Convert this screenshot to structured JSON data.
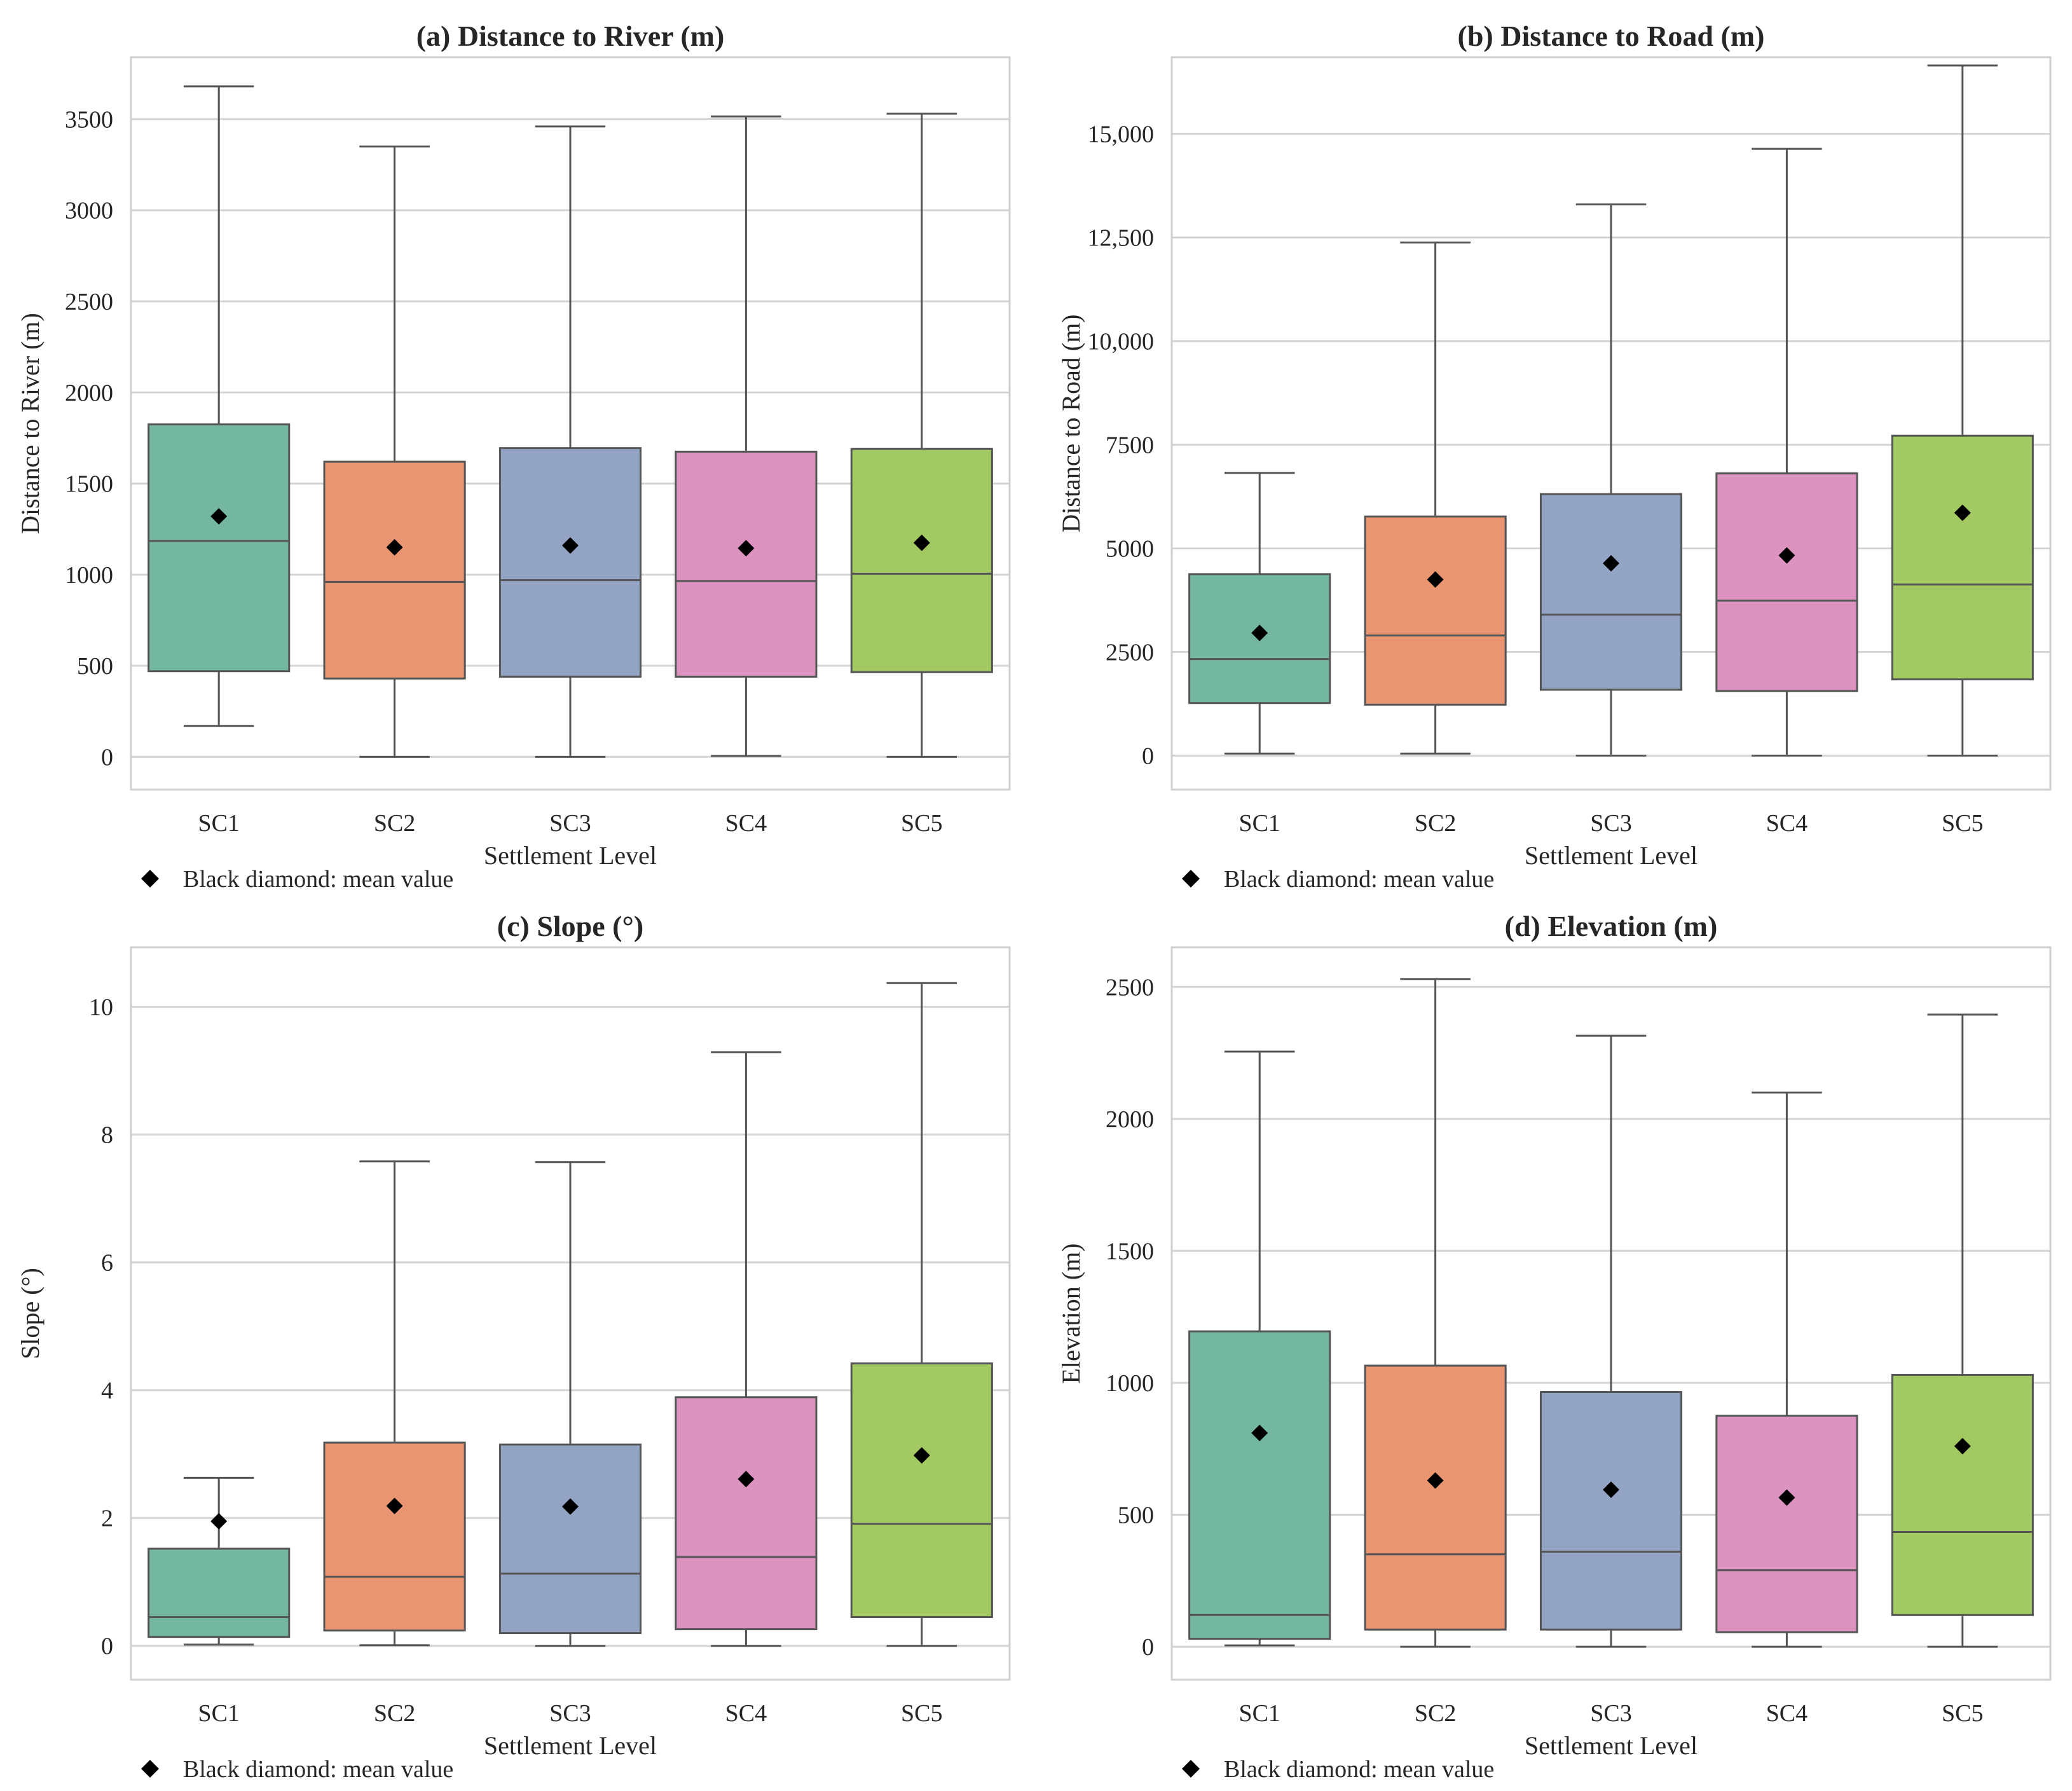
{
  "colors": {
    "SC1": "#74b7a1",
    "SC2": "#e99572",
    "SC3": "#92a3c4",
    "SC4": "#dc93bf",
    "SC5": "#a2c962",
    "edge": "#555555",
    "grid": "#d4d4d4",
    "frame": "#cfcfcf"
  },
  "chart_data": [
    {
      "type": "box",
      "title": "(a) Distance to River (m)",
      "xlabel": "Settlement Level",
      "ylabel": "Distance to River (m)",
      "ylim": [
        -180,
        3840
      ],
      "yticks": [
        0,
        500,
        1000,
        1500,
        2000,
        2500,
        3000,
        3500
      ],
      "ytick_labels": [
        "0",
        "500",
        "1000",
        "1500",
        "2000",
        "2500",
        "3000",
        "3500"
      ],
      "categories": [
        "SC1",
        "SC2",
        "SC3",
        "SC4",
        "SC5"
      ],
      "boxes": [
        {
          "min": 170,
          "q1": 470,
          "median": 1185,
          "q3": 1825,
          "max": 3680,
          "mean": 1320
        },
        {
          "min": 0,
          "q1": 430,
          "median": 960,
          "q3": 1620,
          "max": 3350,
          "mean": 1150
        },
        {
          "min": 0,
          "q1": 440,
          "median": 970,
          "q3": 1695,
          "max": 3460,
          "mean": 1160
        },
        {
          "min": 5,
          "q1": 440,
          "median": 965,
          "q3": 1675,
          "max": 3515,
          "mean": 1145
        },
        {
          "min": 0,
          "q1": 465,
          "median": 1005,
          "q3": 1690,
          "max": 3530,
          "mean": 1175
        }
      ],
      "legend": "Black diamond: mean value"
    },
    {
      "type": "box",
      "title": "(b) Distance to Road (m)",
      "xlabel": "Settlement Level",
      "ylabel": "Distance to Road (m)",
      "ylim": [
        -820,
        16850
      ],
      "yticks": [
        0,
        2500,
        5000,
        7500,
        10000,
        12500,
        15000
      ],
      "ytick_labels": [
        "0",
        "2500",
        "5000",
        "7500",
        "10,000",
        "12,500",
        "15,000"
      ],
      "categories": [
        "SC1",
        "SC2",
        "SC3",
        "SC4",
        "SC5"
      ],
      "boxes": [
        {
          "min": 50,
          "q1": 1270,
          "median": 2330,
          "q3": 4380,
          "max": 6820,
          "mean": 2960
        },
        {
          "min": 50,
          "q1": 1230,
          "median": 2900,
          "q3": 5770,
          "max": 12380,
          "mean": 4250
        },
        {
          "min": 0,
          "q1": 1590,
          "median": 3400,
          "q3": 6310,
          "max": 13300,
          "mean": 4640
        },
        {
          "min": 0,
          "q1": 1560,
          "median": 3740,
          "q3": 6810,
          "max": 14640,
          "mean": 4830
        },
        {
          "min": 0,
          "q1": 1840,
          "median": 4130,
          "q3": 7720,
          "max": 16650,
          "mean": 5860
        }
      ],
      "legend": "Black diamond: mean value"
    },
    {
      "type": "box",
      "title": "(c) Slope (°)",
      "xlabel": "Settlement Level",
      "ylabel": "Slope (°)",
      "ylim": [
        -0.53,
        10.93
      ],
      "yticks": [
        0,
        2,
        4,
        6,
        8,
        10
      ],
      "ytick_labels": [
        "0",
        "2",
        "4",
        "6",
        "8",
        "10"
      ],
      "categories": [
        "SC1",
        "SC2",
        "SC3",
        "SC4",
        "SC5"
      ],
      "boxes": [
        {
          "min": 0.02,
          "q1": 0.14,
          "median": 0.45,
          "q3": 1.52,
          "max": 2.63,
          "mean": 1.95
        },
        {
          "min": 0.01,
          "q1": 0.24,
          "median": 1.08,
          "q3": 3.18,
          "max": 7.58,
          "mean": 2.19
        },
        {
          "min": 0.0,
          "q1": 0.2,
          "median": 1.13,
          "q3": 3.15,
          "max": 7.57,
          "mean": 2.18
        },
        {
          "min": 0.0,
          "q1": 0.26,
          "median": 1.39,
          "q3": 3.89,
          "max": 9.29,
          "mean": 2.61
        },
        {
          "min": 0.0,
          "q1": 0.45,
          "median": 1.91,
          "q3": 4.42,
          "max": 10.37,
          "mean": 2.98
        }
      ],
      "legend": "Black diamond: mean value"
    },
    {
      "type": "box",
      "title": "(d) Elevation (m)",
      "xlabel": "Settlement Level",
      "ylabel": "Elevation (m)",
      "ylim": [
        -125,
        2650
      ],
      "yticks": [
        0,
        500,
        1000,
        1500,
        2000,
        2500
      ],
      "ytick_labels": [
        "0",
        "500",
        "1000",
        "1500",
        "2000",
        "2500"
      ],
      "categories": [
        "SC1",
        "SC2",
        "SC3",
        "SC4",
        "SC5"
      ],
      "boxes": [
        {
          "min": 5,
          "q1": 30,
          "median": 120,
          "q3": 1195,
          "max": 2255,
          "mean": 810
        },
        {
          "min": 0,
          "q1": 65,
          "median": 350,
          "q3": 1065,
          "max": 2530,
          "mean": 630
        },
        {
          "min": 0,
          "q1": 65,
          "median": 360,
          "q3": 965,
          "max": 2315,
          "mean": 595
        },
        {
          "min": 0,
          "q1": 55,
          "median": 290,
          "q3": 875,
          "max": 2100,
          "mean": 565
        },
        {
          "min": 0,
          "q1": 120,
          "median": 435,
          "q3": 1030,
          "max": 2395,
          "mean": 760
        }
      ],
      "legend": "Black diamond: mean value"
    }
  ]
}
